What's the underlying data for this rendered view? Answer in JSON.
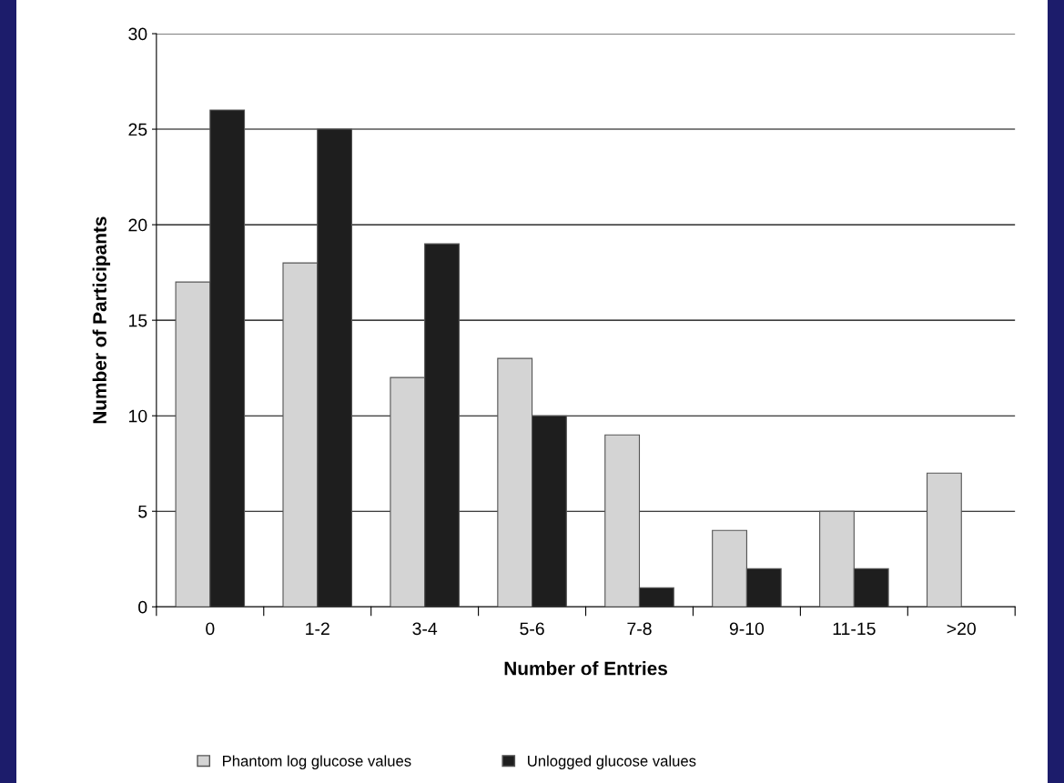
{
  "chart_data": {
    "type": "bar",
    "xlabel": "Number of Entries",
    "ylabel": "Number of Participants",
    "categories": [
      "0",
      "1-2",
      "3-4",
      "5-6",
      "7-8",
      "9-10",
      "11-15",
      ">20"
    ],
    "series": [
      {
        "name": "Phantom log glucose values",
        "color": "#d4d4d4",
        "values": [
          17,
          18,
          12,
          13,
          9,
          4,
          5,
          7
        ]
      },
      {
        "name": "Unlogged glucose values",
        "color": "#1e1e1e",
        "values": [
          26,
          25,
          19,
          10,
          1,
          2,
          2,
          null
        ]
      }
    ],
    "ylim": [
      0,
      30
    ],
    "yticks": [
      0,
      5,
      10,
      15,
      20,
      25,
      30
    ],
    "grid": "y",
    "legend": "bottom"
  }
}
